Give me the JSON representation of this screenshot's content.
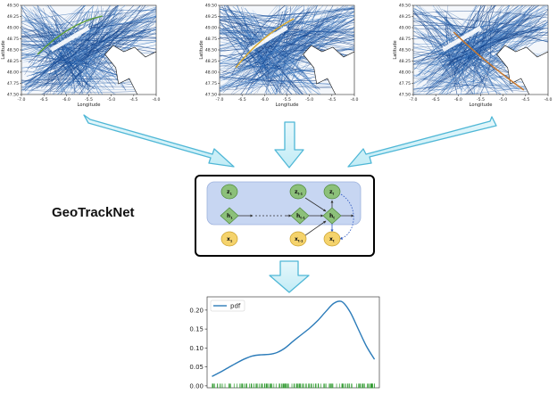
{
  "title": "GeoTrackNet",
  "maps": [
    {
      "id": "map-1",
      "y_label": "Latitude",
      "x_label": "Longitude",
      "y_ticks": [
        "49.50",
        "49.25",
        "49.00",
        "48.75",
        "48.50",
        "48.25",
        "48.00",
        "47.75",
        "47.50"
      ],
      "x_ticks": [
        "-7.0",
        "-6.5",
        "-6.0",
        "-5.5",
        "-5.0",
        "-4.5",
        "-4.0"
      ],
      "highlight_color": "#5a9e2f"
    },
    {
      "id": "map-2",
      "y_label": "Latitude",
      "x_label": "Longitude",
      "y_ticks": [
        "49.50",
        "49.25",
        "49.00",
        "48.75",
        "48.50",
        "48.25",
        "48.00",
        "47.75",
        "47.50"
      ],
      "x_ticks": [
        "-7.0",
        "-6.5",
        "-6.0",
        "-5.5",
        "-5.0",
        "-4.5",
        "-4.0"
      ],
      "highlight_color": "#d9a82a"
    },
    {
      "id": "map-3",
      "y_label": "Latitude",
      "x_label": "Longitude",
      "y_ticks": [
        "49.50",
        "49.25",
        "49.00",
        "48.75",
        "48.50",
        "48.25",
        "48.00",
        "47.75",
        "47.50"
      ],
      "x_ticks": [
        "-7.0",
        "-6.5",
        "-6.0",
        "-5.5",
        "-5.0",
        "-4.5",
        "-4.0"
      ],
      "highlight_color": "#c8772b"
    }
  ],
  "model": {
    "nodes": {
      "z1": {
        "main": "z",
        "sub": "1"
      },
      "zt1": {
        "main": "z",
        "sub": "t-1"
      },
      "zt": {
        "main": "z",
        "sub": "t"
      },
      "h1": {
        "main": "h",
        "sub": "1"
      },
      "ht1": {
        "main": "h",
        "sub": "t-1"
      },
      "ht": {
        "main": "h",
        "sub": "t"
      },
      "x1": {
        "main": "x",
        "sub": "1"
      },
      "xt1": {
        "main": "x",
        "sub": "t-1"
      },
      "xt": {
        "main": "x",
        "sub": "t"
      }
    },
    "colors": {
      "z": "#8cc07a",
      "h": "#8cc07a",
      "x": "#f5d36c",
      "panel": "#c7d6f2"
    }
  },
  "pdf_chart": {
    "legend": "pdf",
    "y_ticks": [
      "0.20",
      "0.15",
      "0.10",
      "0.05",
      "0.00"
    ],
    "line_color": "#2b7bb9",
    "rug_color": "#2e9a2e"
  },
  "chart_data": {
    "type": "line",
    "series": [
      {
        "name": "pdf",
        "x": [
          0.0,
          0.05,
          0.1,
          0.15,
          0.2,
          0.25,
          0.3,
          0.35,
          0.4,
          0.45,
          0.5,
          0.55,
          0.6,
          0.65,
          0.7,
          0.75,
          0.8,
          0.85,
          0.9,
          0.95,
          1.0
        ],
        "values": [
          0.025,
          0.036,
          0.048,
          0.06,
          0.071,
          0.079,
          0.082,
          0.083,
          0.088,
          0.1,
          0.118,
          0.135,
          0.152,
          0.172,
          0.196,
          0.218,
          0.222,
          0.195,
          0.15,
          0.105,
          0.07
        ]
      }
    ],
    "ylim": [
      -0.005,
      0.235
    ],
    "xlabel": "",
    "ylabel": "",
    "legend_position": "top-left",
    "rug": true
  }
}
